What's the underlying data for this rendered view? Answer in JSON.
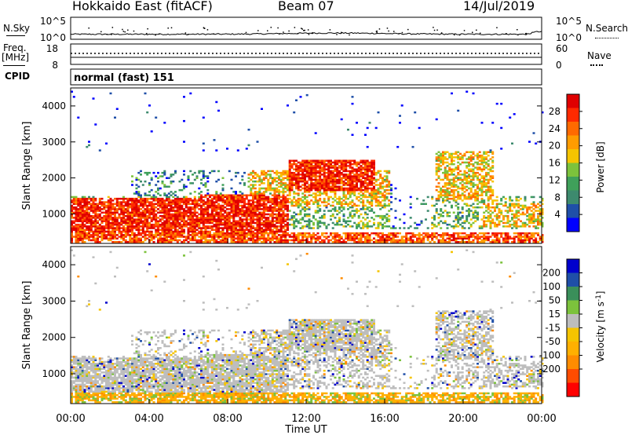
{
  "header": {
    "title": "Hokkaido East (fitACF)",
    "beam": "Beam 07",
    "date": "14/Jul/2019"
  },
  "left_labels": {
    "nsky": "N.Sky",
    "freq": "Freq.",
    "mhz": "[MHz]",
    "cpid": "CPID"
  },
  "right_labels": {
    "nsearch": "N.Search",
    "nave": "Nave"
  },
  "cpid_text": "normal (fast) 151",
  "colors": {
    "power_scale": [
      "#0000ff",
      "#1f4fa8",
      "#3d8a6e",
      "#3fa05a",
      "#7cc23c",
      "#f5c400",
      "#ff9c00",
      "#ff6a00",
      "#ff2a00",
      "#e00000"
    ],
    "velocity_scale": [
      "#ff0000",
      "#ff4c00",
      "#ff8c00",
      "#ffb000",
      "#f5c400",
      "#bdbdbd",
      "#7cc23c",
      "#3a8f5a",
      "#1f4fa8",
      "#0000cc"
    ]
  },
  "chart_data": [
    {
      "type": "line",
      "panel": "noise",
      "yticks_left": [
        "10^5",
        "10^0"
      ],
      "yticks_right": [
        "10^5",
        "10^0"
      ]
    },
    {
      "type": "line",
      "panel": "frequency",
      "yticks_left": [
        "18",
        "8"
      ],
      "yticks_right": [
        "60",
        "0"
      ]
    },
    {
      "type": "heatmap",
      "panel": "power",
      "ylabel": "Slant Range [km]",
      "yticks": [
        "4000",
        "3000",
        "2000",
        "1000"
      ],
      "ylim": [
        180,
        4500
      ],
      "xlim": [
        "00:00",
        "00:00"
      ],
      "colorbar": {
        "label": "Power [dB]",
        "ticks": [
          "28",
          "24",
          "20",
          "16",
          "12",
          "8",
          "4"
        ],
        "range": [
          0,
          32
        ]
      },
      "regions": [
        {
          "t": [
            0.0,
            6.5
          ],
          "r": [
            300,
            1400
          ],
          "level": "high"
        },
        {
          "t": [
            6.5,
            11.0
          ],
          "r": [
            200,
            1500
          ],
          "level": "high"
        },
        {
          "t": [
            11.0,
            15.5
          ],
          "r": [
            1600,
            2500
          ],
          "level": "high"
        },
        {
          "t": [
            9.0,
            16.5
          ],
          "r": [
            1200,
            2200
          ],
          "level": "mid"
        },
        {
          "t": [
            18.5,
            21.5
          ],
          "r": [
            1400,
            2700
          ],
          "level": "mid"
        },
        {
          "t": [
            21.0,
            24.0
          ],
          "r": [
            600,
            1300
          ],
          "level": "mid"
        }
      ]
    },
    {
      "type": "heatmap",
      "panel": "velocity",
      "ylabel": "Slant Range [km]",
      "yticks": [
        "4000",
        "3000",
        "2000",
        "1000"
      ],
      "ylim": [
        180,
        4500
      ],
      "xlim": [
        "00:00",
        "00:00"
      ],
      "colorbar": {
        "label": "Velocity [m s^-1]",
        "ticks": [
          "200",
          "100",
          "50",
          "15",
          "-15",
          "-50",
          "-100",
          "-200"
        ],
        "range": [
          -250,
          250
        ]
      },
      "xticks": [
        "00:00",
        "04:00",
        "08:00",
        "12:00",
        "16:00",
        "20:00",
        "00:00"
      ],
      "xlabel": "Time UT"
    }
  ]
}
